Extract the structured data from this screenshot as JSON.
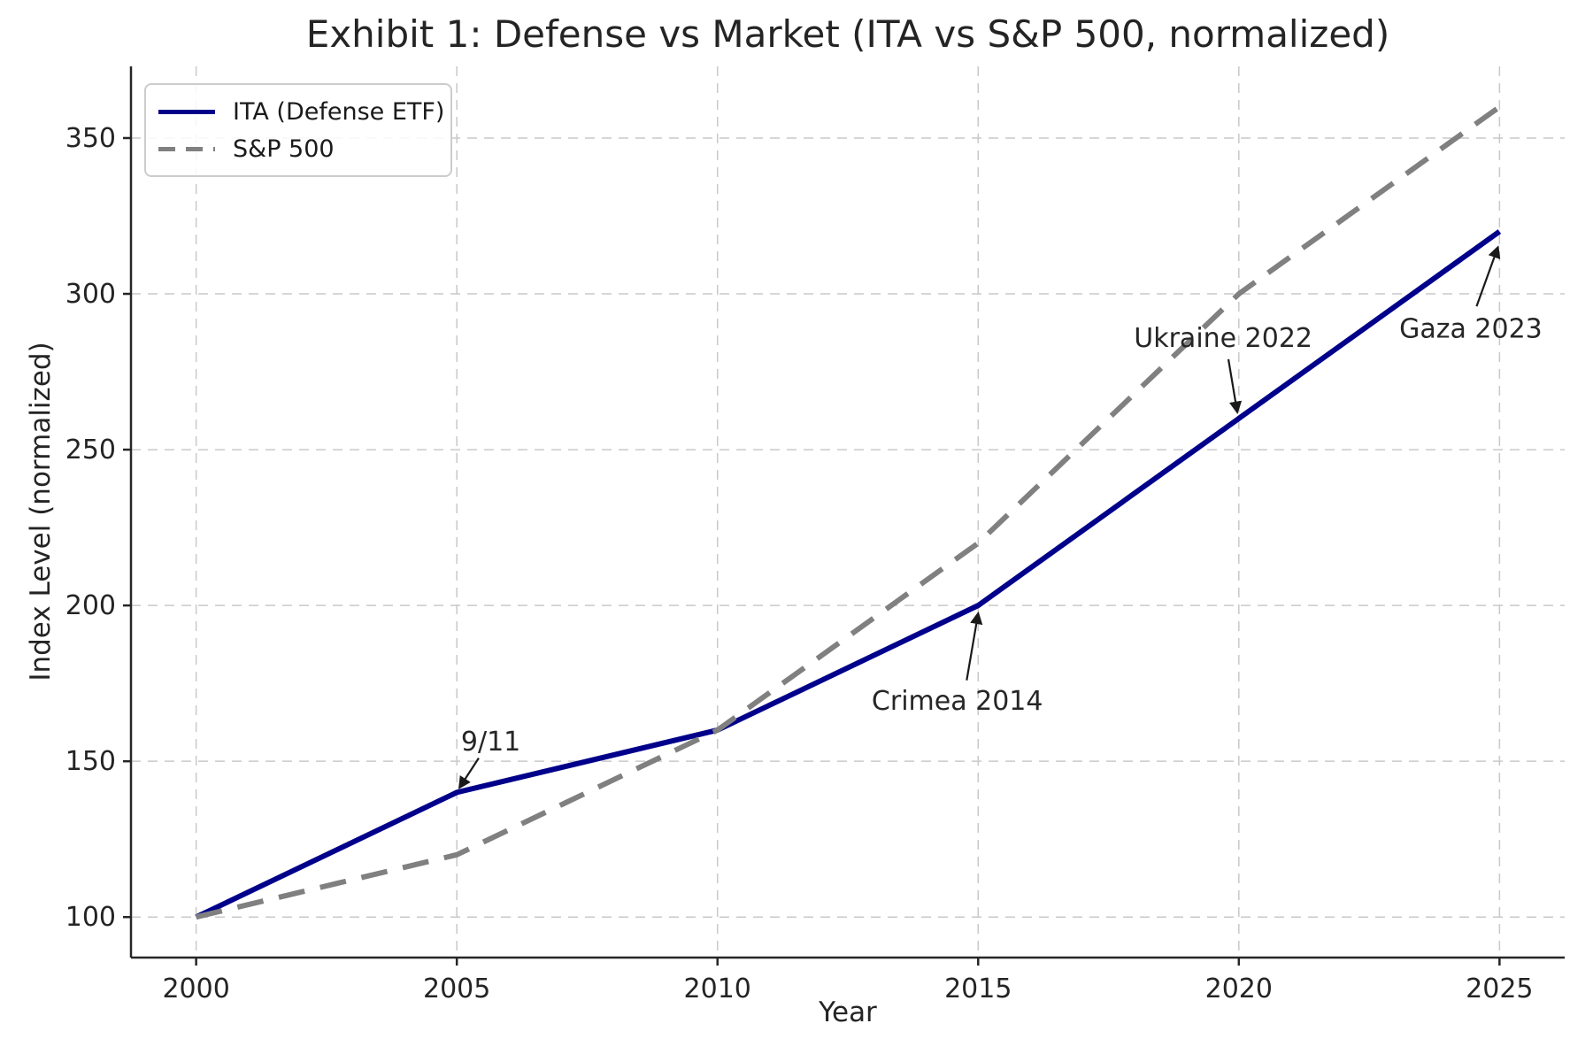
{
  "chart_data": {
    "type": "line",
    "title": "Exhibit 1: Defense vs Market (ITA vs S&P 500, normalized)",
    "xlabel": "Year",
    "ylabel": "Index Level (normalized)",
    "x": [
      2000,
      2005,
      2010,
      2015,
      2020,
      2025
    ],
    "series": [
      {
        "name": "ITA (Defense ETF)",
        "color": "#00008b",
        "line_style": "solid",
        "values": [
          100,
          140,
          160,
          200,
          260,
          320
        ]
      },
      {
        "name": "S&P 500",
        "color": "#808080",
        "line_style": "dashed",
        "values": [
          100,
          120,
          160,
          220,
          300,
          360
        ]
      }
    ],
    "xticks": [
      2000,
      2005,
      2010,
      2015,
      2020,
      2025
    ],
    "yticks": [
      100,
      150,
      200,
      250,
      300,
      350
    ],
    "xlim": [
      1998.75,
      2026.25
    ],
    "ylim": [
      87,
      373
    ],
    "grid": true,
    "legend_position": "upper-left",
    "annotations": [
      {
        "label": "9/11",
        "target_x": 2005.05,
        "target_y": 141.5,
        "tail_x": 2005.42,
        "tail_y": 151,
        "text_x": 2005.08,
        "text_y": 153.5,
        "anchor": "start"
      },
      {
        "label": "Crimea 2014",
        "target_x": 2015.0,
        "target_y": 197.5,
        "tail_x": 2014.78,
        "tail_y": 176,
        "text_x": 2014.6,
        "text_y": 166.5,
        "anchor": "middle"
      },
      {
        "label": "Ukraine 2022",
        "target_x": 2019.97,
        "target_y": 262,
        "tail_x": 2019.8,
        "tail_y": 279,
        "text_x": 2019.7,
        "text_y": 283,
        "anchor": "middle"
      },
      {
        "label": "Gaza 2023",
        "target_x": 2024.97,
        "target_y": 315,
        "tail_x": 2024.56,
        "tail_y": 296,
        "text_x": 2024.45,
        "text_y": 286,
        "anchor": "middle"
      }
    ],
    "colors": {
      "grid": "#c9c9c9",
      "spine": "#262626",
      "tick_text": "#242424",
      "annotation_text": "#262626",
      "annotation_arrow": "#1a1a1a",
      "legend_border": "#cccccc"
    }
  }
}
